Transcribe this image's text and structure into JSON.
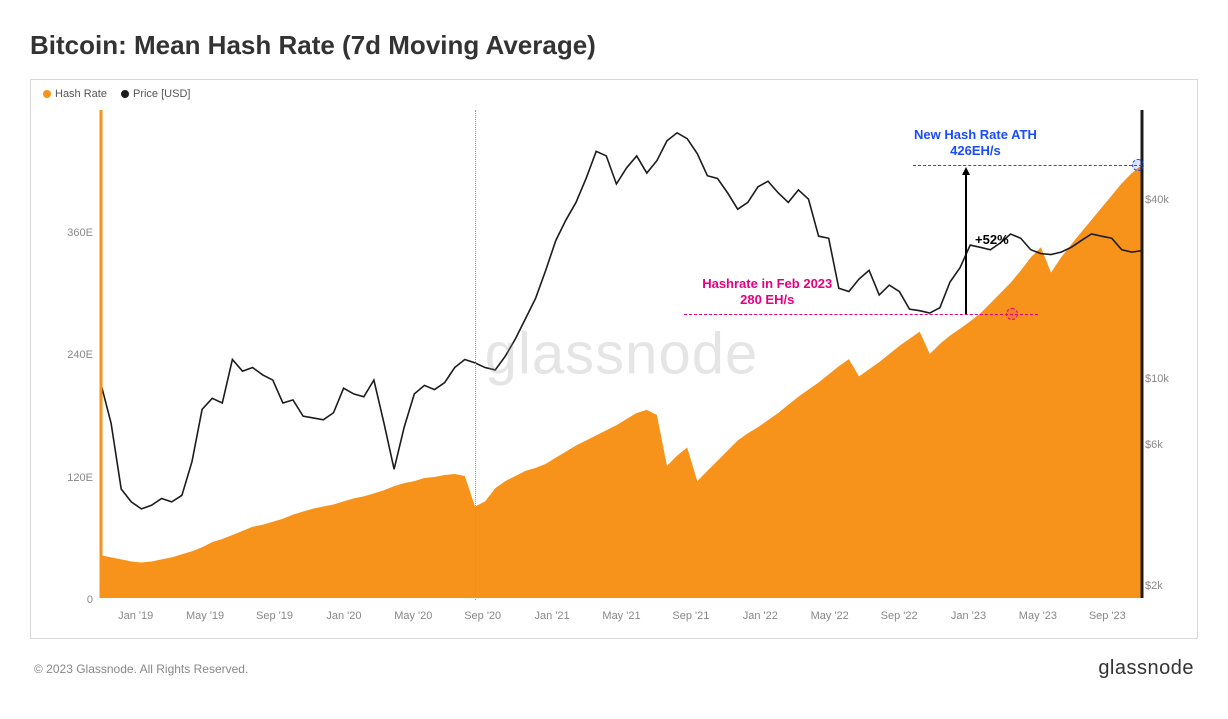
{
  "title": "Bitcoin: Mean Hash Rate (7d Moving Average)",
  "legend": {
    "series1": {
      "label": "Hash Rate",
      "color": "#f7931a"
    },
    "series2": {
      "label": "Price [USD]",
      "color": "#1c1c1c"
    }
  },
  "copyright": "© 2023 Glassnode. All Rights Reserved.",
  "brand": "glassnode",
  "watermark": "glassnode",
  "colors": {
    "area_fill": "#f7931a",
    "price_line": "#1c1c1c",
    "grid": "#d8d8d8",
    "axis_text": "#888888",
    "annot_blue": "#1a4bff",
    "annot_pink": "#e6007e",
    "background": "#ffffff"
  },
  "chart": {
    "type": "combo-area-line",
    "x_labels": [
      "Jan '19",
      "May '19",
      "Sep '19",
      "Jan '20",
      "May '20",
      "Sep '20",
      "Jan '21",
      "May '21",
      "Sep '21",
      "Jan '22",
      "May '22",
      "Sep '22",
      "Jan '23",
      "May '23",
      "Sep '23"
    ],
    "y_left": {
      "ticks": [
        0,
        "120E",
        "240E",
        "360E"
      ],
      "positions": [
        0,
        120,
        240,
        360
      ],
      "max": 480
    },
    "y_right": {
      "ticks": [
        "$2k",
        "$6k",
        "$10k",
        "$40k"
      ],
      "positions_log": [
        2000,
        6000,
        10000,
        40000
      ],
      "scale": "log",
      "min": 1800,
      "max": 80000
    },
    "hashrate_series": [
      42,
      40,
      38,
      36,
      35,
      36,
      38,
      40,
      43,
      46,
      50,
      55,
      58,
      62,
      66,
      70,
      72,
      75,
      78,
      82,
      85,
      88,
      90,
      92,
      95,
      98,
      100,
      103,
      106,
      110,
      113,
      115,
      118,
      119,
      121,
      122,
      120,
      90,
      95,
      108,
      115,
      120,
      125,
      128,
      132,
      138,
      144,
      150,
      155,
      160,
      165,
      170,
      176,
      182,
      185,
      180,
      130,
      140,
      148,
      115,
      125,
      135,
      145,
      155,
      162,
      168,
      175,
      182,
      190,
      198,
      205,
      212,
      220,
      228,
      235,
      218,
      225,
      232,
      240,
      248,
      255,
      262,
      240,
      250,
      258,
      265,
      272,
      280,
      290,
      300,
      310,
      322,
      335,
      345,
      320,
      335,
      348,
      360,
      372,
      384,
      396,
      408,
      418,
      426
    ],
    "price_series": [
      9500,
      7000,
      4200,
      3800,
      3600,
      3700,
      3900,
      3800,
      4000,
      5200,
      7800,
      8500,
      8200,
      11500,
      10500,
      10800,
      10200,
      9800,
      8200,
      8400,
      7400,
      7300,
      7200,
      7600,
      9200,
      8800,
      8600,
      9800,
      7000,
      4900,
      6800,
      8800,
      9400,
      9100,
      9600,
      10800,
      11500,
      11200,
      10800,
      10600,
      11800,
      13500,
      15800,
      18500,
      23000,
      29000,
      34000,
      39000,
      47000,
      58000,
      56000,
      45000,
      51000,
      56000,
      49000,
      54000,
      63000,
      67000,
      64000,
      57000,
      48000,
      47000,
      42000,
      37000,
      39000,
      44000,
      46000,
      42000,
      39000,
      43000,
      40000,
      30000,
      29500,
      20000,
      19500,
      21500,
      23000,
      19000,
      20500,
      19500,
      17000,
      16800,
      16500,
      17200,
      21000,
      23500,
      28000,
      27500,
      27000,
      28500,
      30500,
      29500,
      27000,
      26200,
      26000,
      26500,
      27500,
      29000,
      30500,
      30000,
      29500,
      27000,
      26500,
      26800
    ],
    "vline_x_index": 37,
    "annotations": {
      "ath": {
        "line1": "New Hash Rate ATH",
        "line2": "426EH/s",
        "color": "#1a4bff",
        "hash_value": 426
      },
      "feb2023": {
        "line1": "Hashrate in Feb 2023",
        "line2": "280 EH/s",
        "color": "#e6007e",
        "hash_value": 280
      },
      "growth": {
        "label": "+52%"
      }
    }
  }
}
